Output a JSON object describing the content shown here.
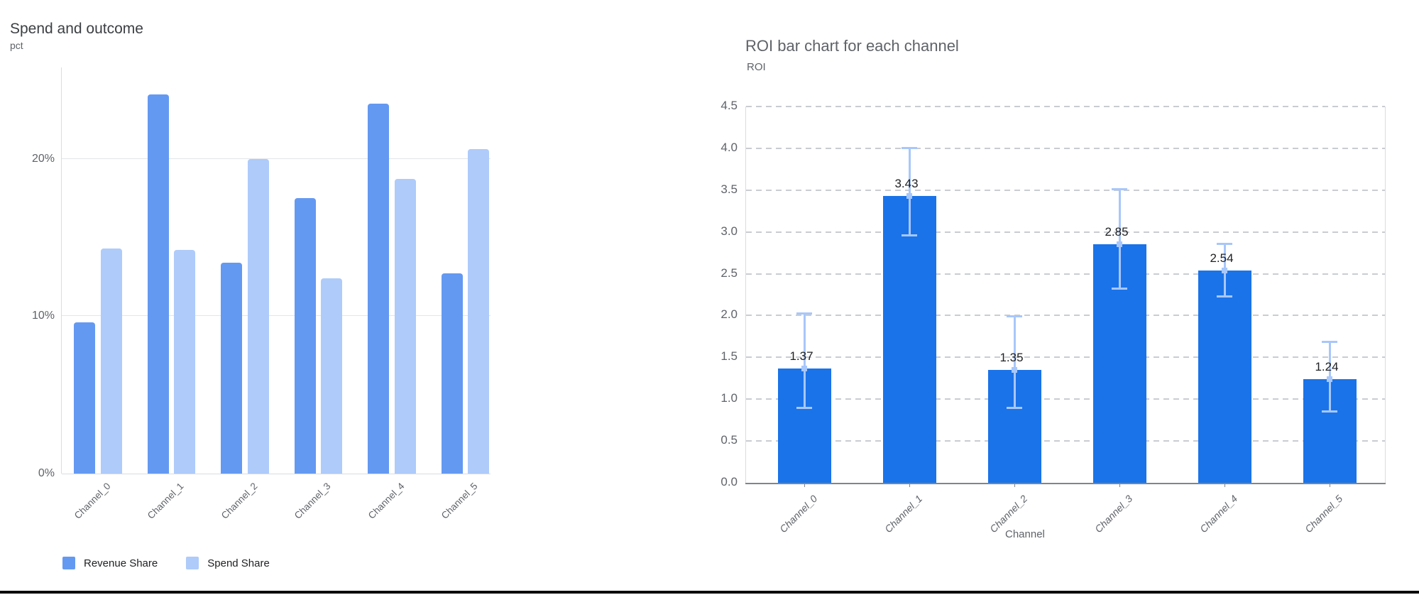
{
  "chart_data": [
    {
      "id": "spend-and-outcome",
      "type": "bar",
      "title": "Spend and outcome",
      "xlabel": "",
      "ylabel": "pct",
      "categories": [
        "Channel_0",
        "Channel_1",
        "Channel_2",
        "Channel_3",
        "Channel_4",
        "Channel_5"
      ],
      "series": [
        {
          "name": "Revenue Share",
          "color": "#6499f2",
          "values": [
            9.6,
            24.1,
            13.4,
            17.5,
            23.5,
            12.7
          ]
        },
        {
          "name": "Spend Share",
          "color": "#aecbfa",
          "values": [
            14.3,
            14.2,
            20.0,
            12.4,
            18.7,
            20.6
          ]
        }
      ],
      "ytick_values": [
        0,
        10,
        20
      ],
      "ytick_labels": [
        "0%",
        "10%",
        "20%"
      ],
      "ylim": [
        0,
        25.8
      ],
      "grid": "solid",
      "legend_position": "bottom"
    },
    {
      "id": "roi-by-channel",
      "type": "bar",
      "title": "ROI bar chart for each channel",
      "xlabel": "Channel",
      "ylabel": "ROI",
      "categories": [
        "Channel_0",
        "Channel_1",
        "Channel_2",
        "Channel_3",
        "Channel_4",
        "Channel_5"
      ],
      "values": [
        1.37,
        3.43,
        1.35,
        2.85,
        2.54,
        1.24
      ],
      "value_labels": [
        "1.37",
        "3.43",
        "1.35",
        "2.85",
        "2.54",
        "1.24"
      ],
      "error_low": [
        0.88,
        2.95,
        0.88,
        2.31,
        2.22,
        0.84
      ],
      "error_high": [
        2.04,
        4.02,
        2.0,
        3.52,
        2.87,
        1.7
      ],
      "bar_color": "#1a73e8",
      "error_color": "#a8c7fa",
      "ytick_values": [
        0.0,
        0.5,
        1.0,
        1.5,
        2.0,
        2.5,
        3.0,
        3.5,
        4.0,
        4.5
      ],
      "ytick_labels": [
        "0.0",
        "0.5",
        "1.0",
        "1.5",
        "2.0",
        "2.5",
        "3.0",
        "3.5",
        "4.0",
        "4.5"
      ],
      "ylim": [
        0,
        4.5
      ],
      "grid": "dashed",
      "legend_position": "none"
    }
  ],
  "window": {
    "bottom_border_color": "#0b0b0b"
  }
}
